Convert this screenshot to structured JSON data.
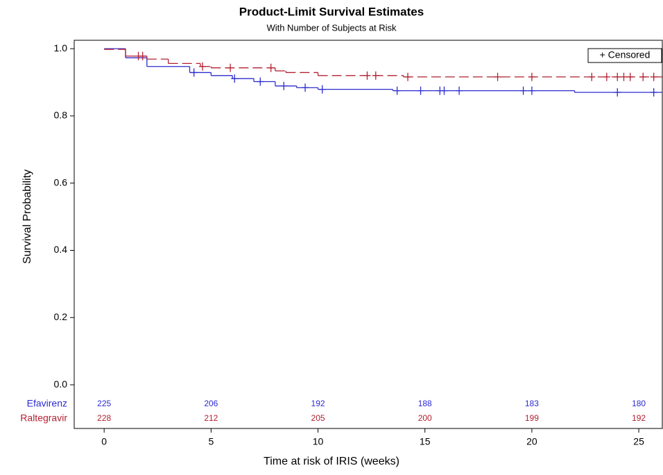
{
  "chart_data": {
    "type": "step",
    "title": "Product-Limit Survival Estimates",
    "subtitle": "With Number of Subjects at Risk",
    "x_label": "Time at risk of IRIS (weeks)",
    "y_label": "Survival Probability",
    "legend_label": "+ Censored",
    "xlim": [
      -1.4,
      26.1
    ],
    "ylim": [
      -0.13,
      1.025
    ],
    "xticks": [
      0,
      5,
      10,
      15,
      20,
      25
    ],
    "yticks": [
      {
        "value": 0,
        "label": "0.0"
      },
      {
        "value": 0.2,
        "label": "0.2"
      },
      {
        "value": 0.4,
        "label": "0.4"
      },
      {
        "value": 0.6,
        "label": "0.6"
      },
      {
        "value": 0.8,
        "label": "0.8"
      },
      {
        "value": 1,
        "label": "1.0"
      }
    ],
    "at_risk_times": [
      0,
      5,
      10,
      15,
      20,
      25
    ],
    "series": [
      {
        "name": "Efavirenz",
        "color": "#2b2bd0",
        "dashed": false,
        "x": [
          0,
          1,
          2,
          4,
          5,
          6,
          7,
          8,
          9,
          10,
          13.5,
          22
        ],
        "values": [
          1.0,
          0.973,
          0.947,
          0.929,
          0.92,
          0.911,
          0.902,
          0.889,
          0.884,
          0.879,
          0.875,
          0.87
        ],
        "censored_x": [
          4.2,
          6.1,
          7.3,
          8.4,
          9.4,
          10.2,
          13.7,
          14.8,
          15.7,
          15.9,
          16.6,
          19.6,
          20.0,
          24.0,
          25.7
        ],
        "at_risk": [
          225,
          206,
          192,
          188,
          183,
          180
        ]
      },
      {
        "name": "Raltegravir",
        "color": "#b22030",
        "dashed": true,
        "x": [
          0,
          1,
          2,
          3,
          4.5,
          5,
          8,
          8.5,
          10,
          14
        ],
        "values": [
          0.998,
          0.978,
          0.969,
          0.956,
          0.947,
          0.943,
          0.934,
          0.929,
          0.92,
          0.916
        ],
        "censored_x": [
          1.6,
          1.8,
          4.6,
          5.9,
          7.8,
          12.3,
          12.7,
          14.2,
          18.4,
          20.0,
          22.8,
          23.5,
          24.0,
          24.3,
          24.6,
          25.2,
          25.7
        ],
        "at_risk": [
          228,
          212,
          205,
          200,
          199,
          192
        ]
      }
    ]
  }
}
